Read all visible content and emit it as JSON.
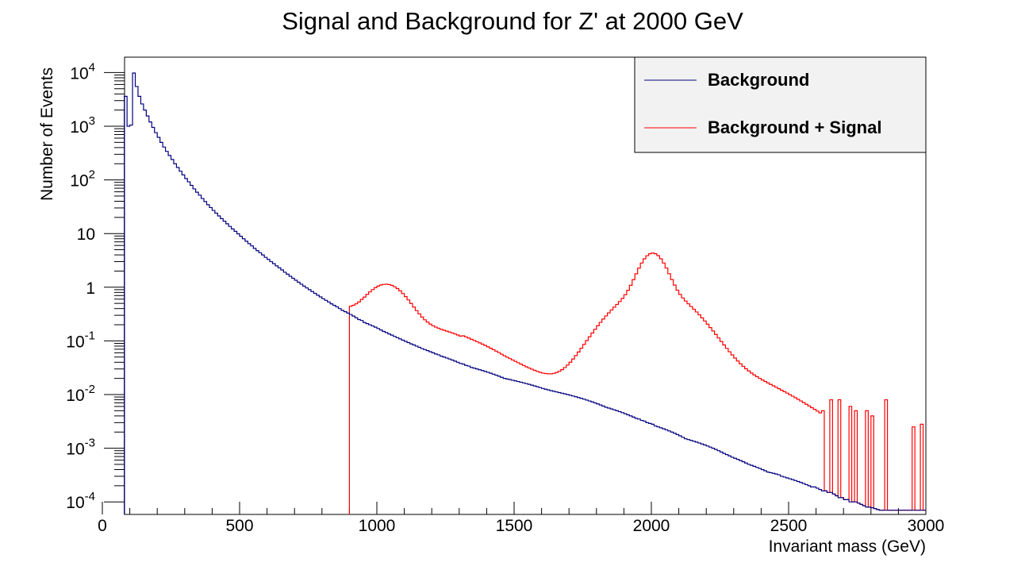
{
  "chart_data": {
    "type": "line",
    "title": "Signal and Background for Z' at 2000 GeV",
    "xlabel": "Invariant mass (GeV)",
    "ylabel": "Number of Events",
    "xlim": [
      0,
      3000
    ],
    "ylim": [
      7e-05,
      20000
    ],
    "yscale": "log",
    "grid": false,
    "legend_position": "top-right",
    "x_ticks": [
      "0",
      "500",
      "1000",
      "1500",
      "2000",
      "2500",
      "3000"
    ],
    "y_ticks": [
      {
        "base": "10",
        "exp": "-4"
      },
      {
        "base": "10",
        "exp": "-3"
      },
      {
        "base": "10",
        "exp": "-2"
      },
      {
        "base": "10",
        "exp": "-1"
      },
      {
        "base": "1",
        "exp": ""
      },
      {
        "base": "10",
        "exp": ""
      },
      {
        "base": "10",
        "exp": "2"
      },
      {
        "base": "10",
        "exp": "3"
      },
      {
        "base": "10",
        "exp": "4"
      }
    ],
    "bin_width": 10,
    "series": [
      {
        "name": "Background",
        "color": "#00007f",
        "bins": [
          [
            80,
            3600
          ],
          [
            90,
            1000
          ],
          [
            100,
            1050
          ],
          [
            110,
            9800
          ],
          [
            120,
            5500
          ],
          [
            130,
            3600
          ],
          [
            140,
            2600
          ],
          [
            150,
            2000
          ],
          [
            160,
            1550
          ],
          [
            170,
            1200
          ],
          [
            180,
            950
          ],
          [
            190,
            760
          ],
          [
            200,
            620
          ],
          [
            210,
            500
          ],
          [
            220,
            410
          ],
          [
            230,
            340
          ],
          [
            240,
            285
          ],
          [
            250,
            240
          ],
          [
            260,
            200
          ],
          [
            270,
            170
          ],
          [
            280,
            145
          ],
          [
            290,
            124
          ],
          [
            300,
            106
          ],
          [
            310,
            92
          ],
          [
            320,
            79
          ],
          [
            330,
            68
          ],
          [
            340,
            59
          ],
          [
            350,
            52
          ],
          [
            360,
            45
          ],
          [
            370,
            39.5
          ],
          [
            380,
            34.5
          ],
          [
            390,
            30.5
          ],
          [
            400,
            27
          ],
          [
            410,
            24
          ],
          [
            420,
            21.3
          ],
          [
            430,
            19
          ],
          [
            440,
            17
          ],
          [
            450,
            15.2
          ],
          [
            460,
            13.6
          ],
          [
            470,
            12.2
          ],
          [
            480,
            11
          ],
          [
            490,
            9.9
          ],
          [
            500,
            8.9
          ],
          [
            510,
            8.0
          ],
          [
            520,
            7.2
          ],
          [
            530,
            6.5
          ],
          [
            540,
            5.9
          ],
          [
            550,
            5.3
          ],
          [
            560,
            4.8
          ],
          [
            570,
            4.4
          ],
          [
            580,
            4.0
          ],
          [
            590,
            3.6
          ],
          [
            600,
            3.3
          ],
          [
            610,
            3.0
          ],
          [
            620,
            2.75
          ],
          [
            630,
            2.5
          ],
          [
            640,
            2.3
          ],
          [
            650,
            2.1
          ],
          [
            660,
            1.9
          ],
          [
            670,
            1.75
          ],
          [
            680,
            1.6
          ],
          [
            690,
            1.47
          ],
          [
            700,
            1.35
          ],
          [
            710,
            1.24
          ],
          [
            720,
            1.14
          ],
          [
            730,
            1.05
          ],
          [
            740,
            0.97
          ],
          [
            750,
            0.9
          ],
          [
            760,
            0.83
          ],
          [
            770,
            0.77
          ],
          [
            780,
            0.71
          ],
          [
            790,
            0.66
          ],
          [
            800,
            0.61
          ],
          [
            810,
            0.57
          ],
          [
            820,
            0.53
          ],
          [
            830,
            0.49
          ],
          [
            840,
            0.46
          ],
          [
            850,
            0.43
          ],
          [
            860,
            0.4
          ],
          [
            870,
            0.37
          ],
          [
            880,
            0.35
          ],
          [
            890,
            0.33
          ],
          [
            900,
            0.31
          ],
          [
            910,
            0.29
          ],
          [
            920,
            0.27
          ],
          [
            930,
            0.25
          ],
          [
            940,
            0.24
          ],
          [
            950,
            0.22
          ],
          [
            960,
            0.21
          ],
          [
            970,
            0.2
          ],
          [
            980,
            0.19
          ],
          [
            990,
            0.18
          ],
          [
            1000,
            0.17
          ],
          [
            1010,
            0.16
          ],
          [
            1020,
            0.15
          ],
          [
            1030,
            0.143
          ],
          [
            1040,
            0.135
          ],
          [
            1050,
            0.128
          ],
          [
            1060,
            0.121
          ],
          [
            1070,
            0.115
          ],
          [
            1080,
            0.109
          ],
          [
            1090,
            0.103
          ],
          [
            1100,
            0.098
          ],
          [
            1110,
            0.093
          ],
          [
            1120,
            0.088
          ],
          [
            1130,
            0.084
          ],
          [
            1140,
            0.08
          ],
          [
            1150,
            0.076
          ],
          [
            1160,
            0.072
          ],
          [
            1170,
            0.069
          ],
          [
            1180,
            0.066
          ],
          [
            1190,
            0.063
          ],
          [
            1200,
            0.06
          ],
          [
            1210,
            0.057
          ],
          [
            1220,
            0.055
          ],
          [
            1230,
            0.052
          ],
          [
            1240,
            0.05
          ],
          [
            1250,
            0.048
          ],
          [
            1260,
            0.046
          ],
          [
            1270,
            0.044
          ],
          [
            1280,
            0.042
          ],
          [
            1290,
            0.04
          ],
          [
            1300,
            0.038
          ],
          [
            1310,
            0.037
          ],
          [
            1320,
            0.035
          ],
          [
            1330,
            0.034
          ],
          [
            1340,
            0.032
          ],
          [
            1350,
            0.031
          ],
          [
            1360,
            0.03
          ],
          [
            1370,
            0.029
          ],
          [
            1380,
            0.028
          ],
          [
            1390,
            0.027
          ],
          [
            1400,
            0.026
          ],
          [
            1410,
            0.025
          ],
          [
            1420,
            0.024
          ],
          [
            1430,
            0.023
          ],
          [
            1440,
            0.022
          ],
          [
            1450,
            0.021
          ],
          [
            1460,
            0.02
          ],
          [
            1470,
            0.0195
          ],
          [
            1480,
            0.019
          ],
          [
            1490,
            0.0185
          ],
          [
            1500,
            0.018
          ],
          [
            1510,
            0.0175
          ],
          [
            1520,
            0.017
          ],
          [
            1530,
            0.0165
          ],
          [
            1540,
            0.016
          ],
          [
            1550,
            0.0155
          ],
          [
            1560,
            0.015
          ],
          [
            1570,
            0.0145
          ],
          [
            1580,
            0.014
          ],
          [
            1590,
            0.0135
          ],
          [
            1600,
            0.013
          ],
          [
            1610,
            0.0126
          ],
          [
            1620,
            0.0122
          ],
          [
            1630,
            0.0118
          ],
          [
            1640,
            0.0115
          ],
          [
            1650,
            0.0112
          ],
          [
            1660,
            0.0109
          ],
          [
            1670,
            0.0106
          ],
          [
            1680,
            0.0103
          ],
          [
            1690,
            0.01
          ],
          [
            1700,
            0.0097
          ],
          [
            1710,
            0.0094
          ],
          [
            1720,
            0.0091
          ],
          [
            1730,
            0.0088
          ],
          [
            1740,
            0.0085
          ],
          [
            1750,
            0.0082
          ],
          [
            1760,
            0.0079
          ],
          [
            1770,
            0.0076
          ],
          [
            1780,
            0.0073
          ],
          [
            1790,
            0.007
          ],
          [
            1800,
            0.0067
          ],
          [
            1810,
            0.0064
          ],
          [
            1820,
            0.0061
          ],
          [
            1830,
            0.0058
          ],
          [
            1840,
            0.0056
          ],
          [
            1850,
            0.0054
          ],
          [
            1860,
            0.0052
          ],
          [
            1870,
            0.005
          ],
          [
            1880,
            0.0048
          ],
          [
            1890,
            0.0046
          ],
          [
            1900,
            0.0044
          ],
          [
            1910,
            0.0042
          ],
          [
            1920,
            0.004
          ],
          [
            1930,
            0.0038
          ],
          [
            1940,
            0.0036
          ],
          [
            1950,
            0.0035
          ],
          [
            1960,
            0.0033
          ],
          [
            1970,
            0.0032
          ],
          [
            1980,
            0.003
          ],
          [
            1990,
            0.0029
          ],
          [
            2000,
            0.0028
          ],
          [
            2010,
            0.0026
          ],
          [
            2020,
            0.0025
          ],
          [
            2030,
            0.0024
          ],
          [
            2040,
            0.0023
          ],
          [
            2050,
            0.0022
          ],
          [
            2060,
            0.0021
          ],
          [
            2070,
            0.002
          ],
          [
            2080,
            0.0019
          ],
          [
            2090,
            0.0018
          ],
          [
            2100,
            0.0017
          ],
          [
            2110,
            0.0016
          ],
          [
            2120,
            0.0015
          ],
          [
            2130,
            0.00145
          ],
          [
            2140,
            0.0014
          ],
          [
            2150,
            0.00135
          ],
          [
            2160,
            0.0013
          ],
          [
            2170,
            0.00125
          ],
          [
            2180,
            0.0012
          ],
          [
            2190,
            0.00115
          ],
          [
            2200,
            0.0011
          ],
          [
            2210,
            0.00105
          ],
          [
            2220,
            0.001
          ],
          [
            2230,
            0.00095
          ],
          [
            2240,
            0.0009
          ],
          [
            2250,
            0.00085
          ],
          [
            2260,
            0.0008
          ],
          [
            2270,
            0.00076
          ],
          [
            2280,
            0.00072
          ],
          [
            2290,
            0.00068
          ],
          [
            2300,
            0.00065
          ],
          [
            2310,
            0.00062
          ],
          [
            2320,
            0.00059
          ],
          [
            2330,
            0.00056
          ],
          [
            2340,
            0.00053
          ],
          [
            2350,
            0.0005
          ],
          [
            2360,
            0.00048
          ],
          [
            2370,
            0.00046
          ],
          [
            2380,
            0.00044
          ],
          [
            2390,
            0.00042
          ],
          [
            2400,
            0.0004
          ],
          [
            2410,
            0.00038
          ],
          [
            2420,
            0.00036
          ],
          [
            2430,
            0.00035
          ],
          [
            2440,
            0.00034
          ],
          [
            2450,
            0.00033
          ],
          [
            2460,
            0.00032
          ],
          [
            2470,
            0.0003
          ],
          [
            2480,
            0.00029
          ],
          [
            2490,
            0.00028
          ],
          [
            2500,
            0.00027
          ],
          [
            2510,
            0.00026
          ],
          [
            2520,
            0.00025
          ],
          [
            2530,
            0.00024
          ],
          [
            2540,
            0.00023
          ],
          [
            2550,
            0.00022
          ],
          [
            2560,
            0.00021
          ],
          [
            2570,
            0.0002
          ],
          [
            2580,
            0.00019
          ],
          [
            2590,
            0.00019
          ],
          [
            2600,
            0.00018
          ],
          [
            2610,
            0.00017
          ],
          [
            2620,
            0.00016
          ],
          [
            2630,
            0.00016
          ],
          [
            2640,
            0.00015
          ],
          [
            2650,
            0.00015
          ],
          [
            2660,
            0.00014
          ],
          [
            2670,
            0.00013
          ],
          [
            2680,
            0.00012
          ],
          [
            2690,
            0.00012
          ],
          [
            2700,
            0.00011
          ],
          [
            2710,
            0.00011
          ],
          [
            2720,
            0.0001
          ],
          [
            2730,
            0.0001
          ],
          [
            2740,
            0.0001
          ],
          [
            2750,
            9.5e-05
          ],
          [
            2760,
            9e-05
          ],
          [
            2770,
            8.5e-05
          ],
          [
            2780,
            8e-05
          ],
          [
            2790,
            8e-05
          ],
          [
            2800,
            7.8e-05
          ],
          [
            2810,
            7.5e-05
          ],
          [
            2820,
            7.2e-05
          ],
          [
            2830,
            7e-05
          ],
          [
            2840,
            7e-05
          ],
          [
            2850,
            7e-05
          ],
          [
            2860,
            7e-05
          ],
          [
            2870,
            7e-05
          ],
          [
            2880,
            7e-05
          ],
          [
            2890,
            7e-05
          ],
          [
            2900,
            7e-05
          ],
          [
            2910,
            7e-05
          ],
          [
            2920,
            7e-05
          ],
          [
            2930,
            7e-05
          ],
          [
            2940,
            7e-05
          ],
          [
            2950,
            7e-05
          ],
          [
            2960,
            7e-05
          ],
          [
            2970,
            7e-05
          ],
          [
            2980,
            7e-05
          ],
          [
            2990,
            7e-05
          ]
        ]
      },
      {
        "name": "Background + Signal",
        "color": "#ff0000",
        "bins": []
      }
    ]
  }
}
